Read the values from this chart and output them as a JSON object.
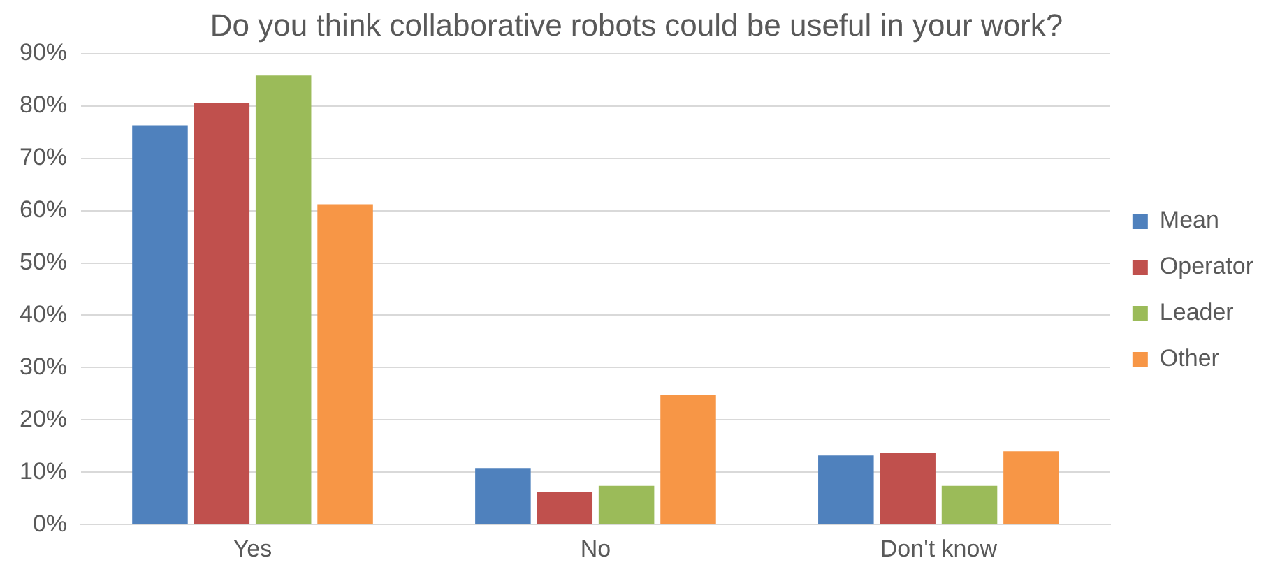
{
  "chart_data": {
    "type": "bar",
    "title": "Do you think collaborative robots could be useful in your work?",
    "categories": [
      "Yes",
      "No",
      "Don't know"
    ],
    "series": [
      {
        "name": "Mean",
        "color": "#4f81bd",
        "values": [
          76.3,
          10.8,
          13.2
        ]
      },
      {
        "name": "Operator",
        "color": "#c0504d",
        "values": [
          80.5,
          6.3,
          13.7
        ]
      },
      {
        "name": "Leader",
        "color": "#9bbb59",
        "values": [
          85.8,
          7.4,
          7.4
        ]
      },
      {
        "name": "Other",
        "color": "#f79646",
        "values": [
          61.2,
          24.8,
          14
        ]
      }
    ],
    "ylim": [
      0,
      90
    ],
    "yticks": [
      {
        "value": 0,
        "label": "0%"
      },
      {
        "value": 10,
        "label": "10%"
      },
      {
        "value": 20,
        "label": "20%"
      },
      {
        "value": 30,
        "label": "30%"
      },
      {
        "value": 40,
        "label": "40%"
      },
      {
        "value": 50,
        "label": "50%"
      },
      {
        "value": 60,
        "label": "60%"
      },
      {
        "value": 70,
        "label": "70%"
      },
      {
        "value": 80,
        "label": "80%"
      },
      {
        "value": 90,
        "label": "90%"
      }
    ],
    "grid": "y",
    "legend": "right"
  }
}
